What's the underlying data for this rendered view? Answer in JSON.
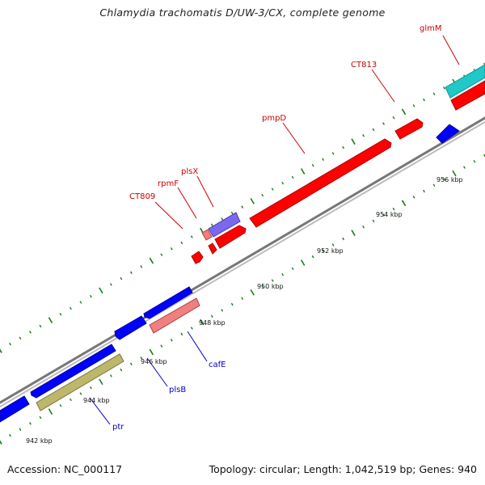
{
  "title": "Chlamydia trachomatis D/UW-3/CX, complete genome",
  "footer": {
    "accession": "Accession: NC_000117",
    "summary": "Topology: circular; Length: 1,042,519 bp; Genes: 940"
  },
  "colors": {
    "forward": "#ff0000",
    "reverse": "#0000ff",
    "pink": "#f08080",
    "purple": "#7b68ee",
    "cyan": "#20c8c8",
    "olive": "#bdb76b",
    "backbone": "#888888",
    "tick": "#1a7a1a",
    "label_forward": "#cc0000",
    "label_reverse": "#0000cc"
  },
  "scale_labels": [
    "942 kbp",
    "944 kbp",
    "946 kbp",
    "948 kbp",
    "950 kbp",
    "952 kbp",
    "954 kbp",
    "956 kbp"
  ],
  "gene_labels": {
    "glmM": "glmM",
    "CT813": "CT813",
    "pmpD": "pmpD",
    "plsX": "plsX",
    "rpmF": "rpmF",
    "CT809": "CT809",
    "cafE": "cafE",
    "plsB": "plsB",
    "ptr": "ptr"
  }
}
